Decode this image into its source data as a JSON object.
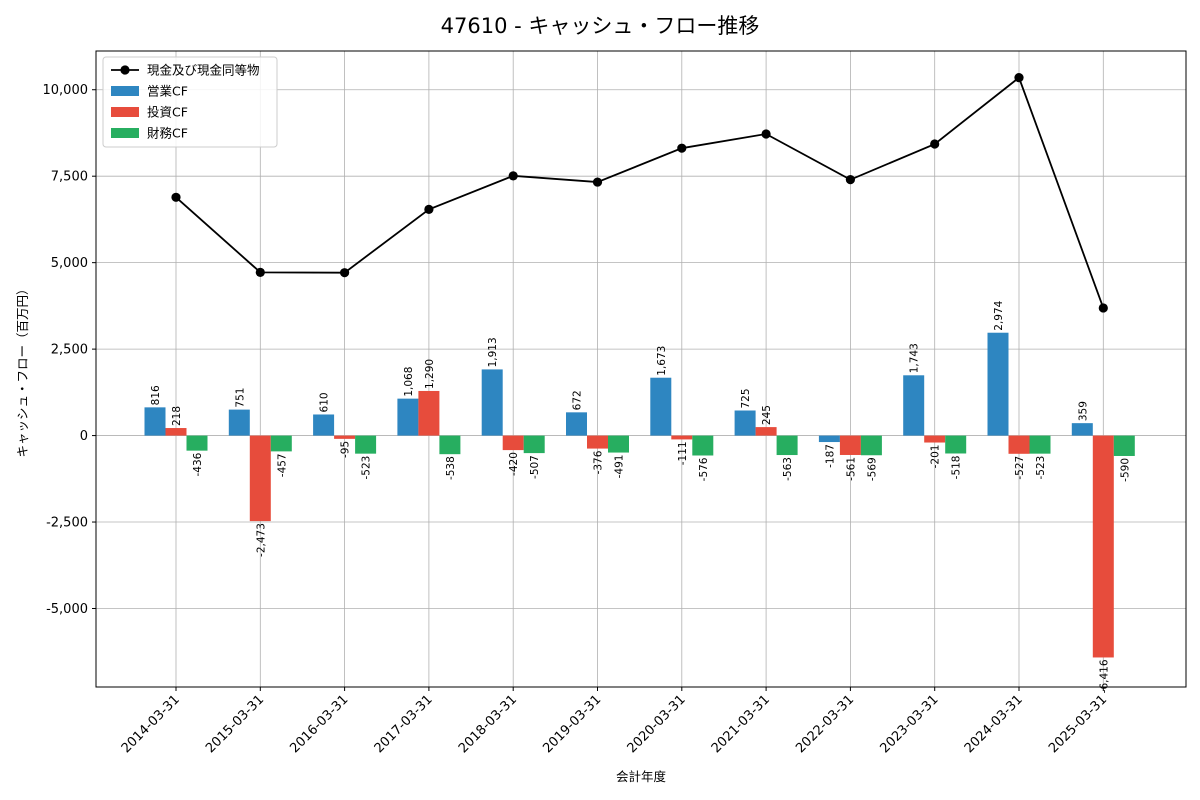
{
  "chart_data": {
    "type": "bar",
    "title": "47610 - キャッシュ・フロー推移",
    "xlabel": "会計年度",
    "ylabel": "キャッシュ・フロー（百万円）",
    "categories": [
      "2014-03-31",
      "2015-03-31",
      "2016-03-31",
      "2017-03-31",
      "2018-03-31",
      "2019-03-31",
      "2020-03-31",
      "2021-03-31",
      "2022-03-31",
      "2023-03-31",
      "2024-03-31",
      "2025-03-31"
    ],
    "series": [
      {
        "name": "営業CF",
        "type": "bar",
        "color": "#2e86c1",
        "values": [
          816,
          751,
          610,
          1068,
          1913,
          672,
          1673,
          725,
          -187,
          1743,
          2974,
          359
        ],
        "labels": [
          "816",
          "751",
          "610",
          "1,068",
          "1,913",
          "672",
          "1,673",
          "725",
          "-187",
          "1,743",
          "2,974",
          "359"
        ]
      },
      {
        "name": "投資CF",
        "type": "bar",
        "color": "#e74c3c",
        "values": [
          218,
          -2473,
          -95,
          1290,
          -420,
          -376,
          -111,
          245,
          -561,
          -201,
          -527,
          -6416
        ],
        "labels": [
          "218",
          "-2,473",
          "-95",
          "1,290",
          "-420",
          "-376",
          "-111",
          "245",
          "-561",
          "-201",
          "-527",
          "-6,416"
        ]
      },
      {
        "name": "財務CF",
        "type": "bar",
        "color": "#27ae60",
        "values": [
          -436,
          -457,
          -523,
          -538,
          -507,
          -491,
          -576,
          -563,
          -569,
          -518,
          -523,
          -590
        ],
        "labels": [
          "-436",
          "-457",
          "-523",
          "-538",
          "-507",
          "-491",
          "-576",
          "-563",
          "-569",
          "-518",
          "-523",
          "-590"
        ]
      },
      {
        "name": "現金及び現金同等物",
        "type": "line",
        "color": "#000000",
        "values": [
          6890,
          4720,
          4710,
          6540,
          7510,
          7330,
          8310,
          8720,
          7400,
          8430,
          10350,
          3690
        ]
      }
    ],
    "ylim": [
      -7270,
      11120
    ],
    "yticks": [
      -5000,
      -2500,
      0,
      2500,
      5000,
      7500,
      10000
    ],
    "ytick_labels": [
      "-5,000",
      "-2,500",
      "0",
      "2,500",
      "5,000",
      "7,500",
      "10,000"
    ],
    "grid": true,
    "legend_position": "top-left",
    "legend_order": [
      "現金及び現金同等物",
      "営業CF",
      "投資CF",
      "財務CF"
    ]
  }
}
